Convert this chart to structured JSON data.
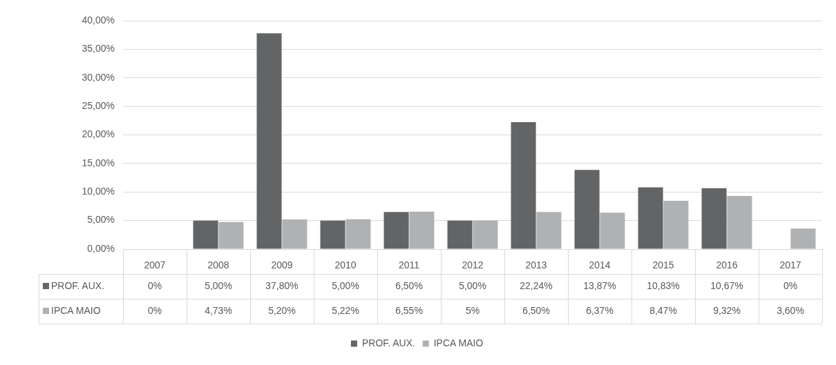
{
  "chart_data": {
    "type": "bar",
    "categories": [
      "2007",
      "2008",
      "2009",
      "2010",
      "2011",
      "2012",
      "2013",
      "2014",
      "2015",
      "2016",
      "2017"
    ],
    "series": [
      {
        "name": "PROF. AUX.",
        "color": "#636466",
        "values": [
          0,
          5.0,
          37.8,
          5.0,
          6.5,
          5.0,
          22.24,
          13.87,
          10.83,
          10.67,
          0
        ],
        "value_labels": [
          "0%",
          "5,00%",
          "37,80%",
          "5,00%",
          "6,50%",
          "5,00%",
          "22,24%",
          "13,87%",
          "10,83%",
          "10,67%",
          "0%"
        ]
      },
      {
        "name": "IPCA MAIO",
        "color": "#b0b1b3",
        "values": [
          0,
          4.73,
          5.2,
          5.22,
          6.55,
          5,
          6.5,
          6.37,
          8.47,
          9.32,
          3.6
        ],
        "value_labels": [
          "0%",
          "4,73%",
          "5,20%",
          "5,22%",
          "6,55%",
          "5%",
          "6,50%",
          "6,37%",
          "8,47%",
          "9,32%",
          "3,60%"
        ]
      }
    ],
    "ylim": [
      0,
      40
    ],
    "yticks": [
      {
        "value": 0,
        "label": "0,00%"
      },
      {
        "value": 5,
        "label": "5,00%"
      },
      {
        "value": 10,
        "label": "10,00%"
      },
      {
        "value": 15,
        "label": "15,00%"
      },
      {
        "value": 20,
        "label": "20,00%"
      },
      {
        "value": 25,
        "label": "25,00%"
      },
      {
        "value": 30,
        "label": "30,00%"
      },
      {
        "value": 35,
        "label": "35,00%"
      },
      {
        "value": 40,
        "label": "40,00%"
      }
    ],
    "grid": "y",
    "legend": "bottom"
  }
}
